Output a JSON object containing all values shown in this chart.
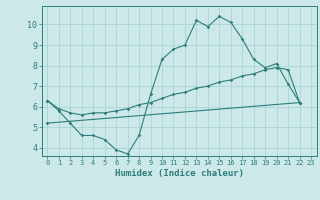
{
  "xlabel": "Humidex (Indice chaleur)",
  "bg_color": "#cce8e8",
  "grid_color": "#aad4d4",
  "line_color": "#2d7d7d",
  "xlim": [
    -0.5,
    23.5
  ],
  "ylim": [
    3.6,
    10.9
  ],
  "xticks": [
    0,
    1,
    2,
    3,
    4,
    5,
    6,
    7,
    8,
    9,
    10,
    11,
    12,
    13,
    14,
    15,
    16,
    17,
    18,
    19,
    20,
    21,
    22,
    23
  ],
  "yticks": [
    4,
    5,
    6,
    7,
    8,
    9,
    10
  ],
  "line1_x": [
    0,
    1,
    2,
    3,
    4,
    5,
    6,
    7,
    8,
    9,
    10,
    11,
    12,
    13,
    14,
    15,
    16,
    17,
    18,
    19,
    20,
    21,
    22
  ],
  "line1_y": [
    6.3,
    5.8,
    5.2,
    4.6,
    4.6,
    4.4,
    3.9,
    3.7,
    4.6,
    6.6,
    8.3,
    8.8,
    9.0,
    10.2,
    9.9,
    10.4,
    10.1,
    9.3,
    8.3,
    7.9,
    8.1,
    7.1,
    6.2
  ],
  "line2_x": [
    0,
    1,
    2,
    3,
    4,
    5,
    6,
    7,
    8,
    9,
    10,
    11,
    12,
    13,
    14,
    15,
    16,
    17,
    18,
    19,
    20,
    21,
    22
  ],
  "line2_y": [
    6.3,
    5.9,
    5.7,
    5.6,
    5.7,
    5.7,
    5.8,
    5.9,
    6.1,
    6.2,
    6.4,
    6.6,
    6.7,
    6.9,
    7.0,
    7.2,
    7.3,
    7.5,
    7.6,
    7.8,
    7.9,
    7.8,
    6.2
  ],
  "line3_x": [
    0,
    22
  ],
  "line3_y": [
    5.2,
    6.2
  ]
}
